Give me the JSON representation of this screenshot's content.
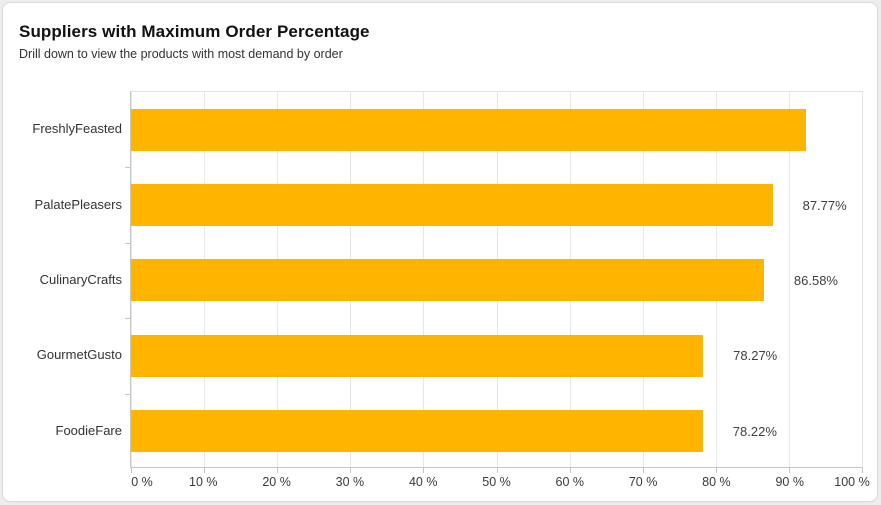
{
  "header": {
    "title": "Suppliers with Maximum Order Percentage",
    "subtitle": "Drill down to view the products with most demand by order"
  },
  "chart_data": {
    "type": "bar",
    "orientation": "horizontal",
    "title": "Suppliers with Maximum Order Percentage",
    "subtitle": "Drill down to view the products with most demand by order",
    "categories": [
      "FreshlyFeasted",
      "PalatePleasers",
      "CulinaryCrafts",
      "GourmetGusto",
      "FoodieFare"
    ],
    "values": [
      92.3,
      87.77,
      86.58,
      78.27,
      78.22
    ],
    "value_labels": [
      "",
      "87.77%",
      "86.58%",
      "78.27%",
      "78.22%"
    ],
    "x_tick_labels": [
      "0 %",
      "10 %",
      "20 %",
      "30 %",
      "40 %",
      "50 %",
      "60 %",
      "70 %",
      "80 %",
      "90 %",
      "100 %"
    ],
    "xlim": [
      0,
      100
    ],
    "xlabel": "",
    "ylabel": "",
    "grid": "vertical-major-only",
    "legend": "none",
    "value_label_position": "outside-end",
    "note_first_bar_label_hidden": true
  },
  "colors": {
    "bar": "#FFB400",
    "gridline": "#e7e7e7",
    "axis_line": "#c6c6c6",
    "card_background": "#ffffff",
    "page_background": "#eeeeee",
    "title_text": "#111111",
    "label_text": "#333333"
  }
}
